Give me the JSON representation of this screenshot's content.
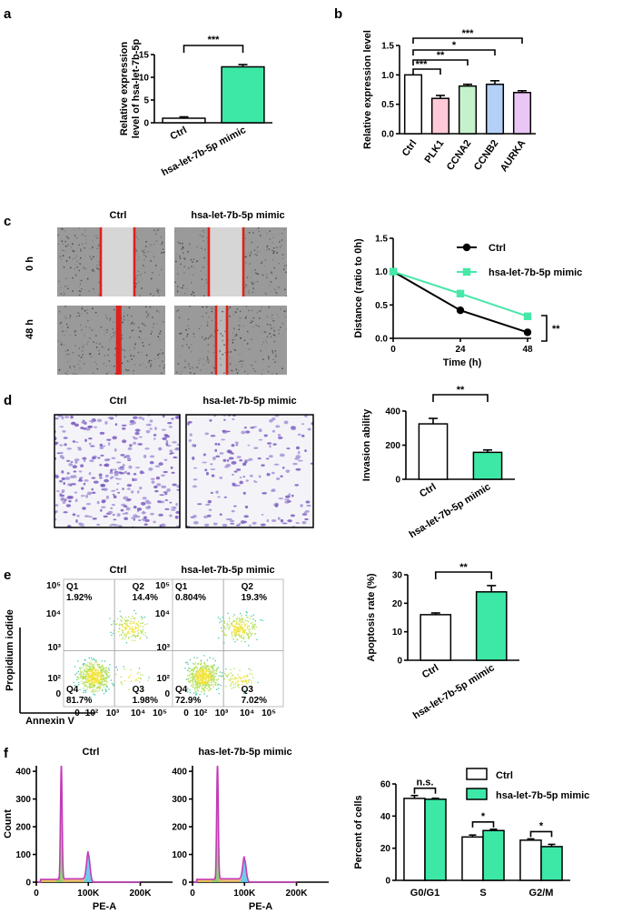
{
  "panel_letters": [
    "a",
    "b",
    "c",
    "d",
    "e",
    "f"
  ],
  "chart_data": [
    {
      "panel": "a",
      "type": "bar",
      "ylabel": "Relative expression level of hsa-let-7b-5p",
      "categories": [
        "Ctrl",
        "hsa-let-7b-5p mimic"
      ],
      "values": [
        1.0,
        12.3
      ],
      "errors": [
        0.3,
        0.5
      ],
      "colors": [
        "#ffffff",
        "#3de8a6"
      ],
      "ylim": [
        0,
        15
      ],
      "yticks": [
        0,
        5,
        10,
        15
      ],
      "significance": [
        {
          "pair": [
            0,
            1
          ],
          "label": "***"
        }
      ]
    },
    {
      "panel": "b",
      "type": "bar",
      "ylabel": "Relative expression level",
      "categories": [
        "Ctrl",
        "PLK1",
        "CCNA2",
        "CCNB2",
        "AURKA"
      ],
      "values": [
        1.0,
        0.6,
        0.81,
        0.84,
        0.7
      ],
      "errors": [
        0.0,
        0.05,
        0.03,
        0.06,
        0.03
      ],
      "colors": [
        "#ffffff",
        "#ffc9d8",
        "#c6f2cb",
        "#b3d0f7",
        "#e9c6f6"
      ],
      "ylim": [
        0,
        1.5
      ],
      "yticks": [
        0.0,
        0.5,
        1.0,
        1.5
      ],
      "significance": [
        {
          "pair": [
            0,
            1
          ],
          "label": "***"
        },
        {
          "pair": [
            0,
            2
          ],
          "label": "**"
        },
        {
          "pair": [
            0,
            3
          ],
          "label": "*"
        },
        {
          "pair": [
            0,
            4
          ],
          "label": "***"
        }
      ]
    },
    {
      "panel": "c",
      "type": "line",
      "xlabel": "Time (h)",
      "ylabel": "Distance (ratio to 0h)",
      "x": [
        0,
        24,
        48
      ],
      "xticks": [
        0,
        24,
        48
      ],
      "ylim": [
        0,
        1.5
      ],
      "yticks": [
        0.0,
        0.5,
        1.0,
        1.5
      ],
      "legend_position": "top-right",
      "series": [
        {
          "name": "Ctrl",
          "values": [
            1.0,
            0.42,
            0.09
          ],
          "errors": [
            0,
            0.04,
            0.03
          ],
          "color": "#000000",
          "marker": "circle"
        },
        {
          "name": "hsa-let-7b-5p mimic",
          "values": [
            1.0,
            0.67,
            0.33
          ],
          "errors": [
            0,
            0.02,
            0.04
          ],
          "color": "#46e8a8",
          "marker": "square"
        }
      ],
      "significance": "**"
    },
    {
      "panel": "d",
      "type": "bar",
      "ylabel": "Invasion ability",
      "categories": [
        "Ctrl",
        "hsa-let-7b-5p mimic"
      ],
      "values": [
        325,
        158
      ],
      "errors": [
        32,
        14
      ],
      "colors": [
        "#ffffff",
        "#3de8a6"
      ],
      "ylim": [
        0,
        400
      ],
      "yticks": [
        0,
        200,
        400
      ],
      "significance": [
        {
          "pair": [
            0,
            1
          ],
          "label": "**"
        }
      ]
    },
    {
      "panel": "e",
      "type": "bar",
      "ylabel": "Apoptosis rate (%)",
      "categories": [
        "Ctrl",
        "hsa-let-7b-5p mimic"
      ],
      "values": [
        16,
        24
      ],
      "errors": [
        0.6,
        2.2
      ],
      "colors": [
        "#ffffff",
        "#3de8a6"
      ],
      "ylim": [
        0,
        30
      ],
      "yticks": [
        0,
        10,
        20,
        30
      ],
      "significance": [
        {
          "pair": [
            0,
            1
          ],
          "label": "**"
        }
      ]
    },
    {
      "panel": "f",
      "type": "bar",
      "ylabel": "Percent of cells",
      "categories": [
        "G0/G1",
        "S",
        "G2/M"
      ],
      "ylim": [
        0,
        60
      ],
      "yticks": [
        0,
        20,
        40,
        60
      ],
      "legend_position": "top-right",
      "series": [
        {
          "name": "Ctrl",
          "values": [
            51,
            27,
            25
          ],
          "errors": [
            1.8,
            1.2,
            0.8
          ],
          "color": "#ffffff"
        },
        {
          "name": "hsa-let-7b-5p mimic",
          "values": [
            50.5,
            31,
            21
          ],
          "errors": [
            0.6,
            0.8,
            1.4
          ],
          "color": "#3de8a6"
        }
      ],
      "significance": [
        "n.s.",
        "*",
        "*"
      ]
    }
  ],
  "scratch": {
    "col_labels": [
      "Ctrl",
      "hsa-let-7b-5p mimic"
    ],
    "row_labels": [
      "0 h",
      "48 h"
    ]
  },
  "transwell": {
    "col_labels": [
      "Ctrl",
      "hsa-let-7b-5p mimic"
    ]
  },
  "flow": {
    "col_labels": [
      "Ctrl",
      "hsa-let-7b-5p mimic"
    ],
    "xlabel": "Annexin V",
    "ylabel": "Propidium iodide",
    "yticks": [
      "10⁵",
      "10⁴",
      "10³",
      "10²",
      "0"
    ],
    "xticks": [
      "0",
      "10²",
      "10³",
      "10⁴",
      "10⁵"
    ],
    "quadrant_names": [
      "Q1",
      "Q2",
      "Q3",
      "Q4"
    ],
    "plots": [
      {
        "q1": "1.92%",
        "q2": "14.4%",
        "q3": "1.98%",
        "q4": "81.7%"
      },
      {
        "q1": "0.804%",
        "q2": "19.3%",
        "q3": "7.02%",
        "q4": "72.9%"
      }
    ]
  },
  "histograms": {
    "titles": [
      "Ctrl",
      "has-let-7b-5p mimic"
    ],
    "xlabel": "PE-A",
    "ylabel": "Count",
    "xticks": [
      "0",
      "100K",
      "200K"
    ],
    "yticks": [
      "0",
      "100",
      "200",
      "300",
      "400"
    ]
  }
}
